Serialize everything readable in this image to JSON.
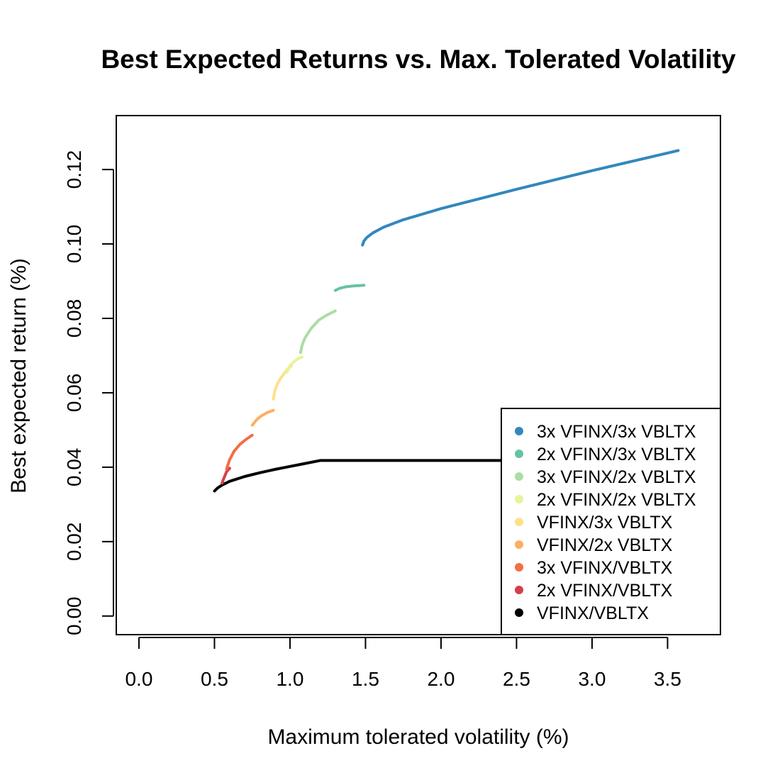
{
  "chart_data": {
    "type": "line",
    "title": "Best Expected Returns vs. Max. Tolerated Volatility",
    "xlabel": "Maximum tolerated volatility (%)",
    "ylabel": "Best expected return (%)",
    "xlim": [
      -0.15,
      3.85
    ],
    "ylim": [
      -0.005,
      0.1345
    ],
    "x_ticks": [
      "0.0",
      "0.5",
      "1.0",
      "1.5",
      "2.0",
      "2.5",
      "3.0",
      "3.5"
    ],
    "y_ticks": [
      "0.00",
      "0.02",
      "0.04",
      "0.06",
      "0.08",
      "0.10",
      "0.12"
    ],
    "grid": false,
    "legend_position": "bottom-right",
    "series": [
      {
        "name": "3x VFINX/3x VBLTX",
        "color": "#3288bd",
        "x": [
          1.48,
          1.49,
          1.51,
          1.55,
          1.62,
          1.75,
          2.0,
          2.5,
          3.0,
          3.57
        ],
        "y": [
          0.0997,
          0.1008,
          0.1018,
          0.103,
          0.1045,
          0.1065,
          0.1095,
          0.1147,
          0.1197,
          0.1251
        ]
      },
      {
        "name": "2x VFINX/3x VBLTX",
        "color": "#66c2a5",
        "x": [
          1.3,
          1.33,
          1.37,
          1.42,
          1.49
        ],
        "y": [
          0.0875,
          0.0881,
          0.0885,
          0.0887,
          0.0889
        ]
      },
      {
        "name": "3x VFINX/2x VBLTX",
        "color": "#abdda4",
        "x": [
          1.07,
          1.08,
          1.1,
          1.14,
          1.19,
          1.24,
          1.3
        ],
        "y": [
          0.0708,
          0.0728,
          0.0748,
          0.0773,
          0.0795,
          0.0808,
          0.082
        ]
      },
      {
        "name": "2x VFINX/2x VBLTX",
        "color": "#e6f598",
        "x": [
          0.98,
          1.0,
          1.03,
          1.06,
          1.08
        ],
        "y": [
          0.0655,
          0.0673,
          0.0685,
          0.0693,
          0.0696
        ]
      },
      {
        "name": "VFINX/3x VBLTX",
        "color": "#fee08b",
        "x": [
          0.89,
          0.9,
          0.92,
          0.95,
          0.98,
          1.01
        ],
        "y": [
          0.0583,
          0.0606,
          0.0627,
          0.0646,
          0.0662,
          0.0673
        ]
      },
      {
        "name": "VFINX/2x VBLTX",
        "color": "#fdae61",
        "x": [
          0.75,
          0.78,
          0.81,
          0.85,
          0.89
        ],
        "y": [
          0.0513,
          0.0528,
          0.0538,
          0.0547,
          0.0553
        ]
      },
      {
        "name": "3x VFINX/VBLTX",
        "color": "#f46d43",
        "x": [
          0.58,
          0.6,
          0.63,
          0.67,
          0.71,
          0.75
        ],
        "y": [
          0.0395,
          0.042,
          0.0443,
          0.0462,
          0.0475,
          0.0486
        ]
      },
      {
        "name": "2x VFINX/VBLTX",
        "color": "#d53e4f",
        "x": [
          0.55,
          0.56,
          0.57,
          0.58,
          0.6
        ],
        "y": [
          0.0357,
          0.0368,
          0.0378,
          0.0388,
          0.0397
        ]
      },
      {
        "name": "VFINX/VBLTX",
        "color": "#000000",
        "x": [
          0.5,
          0.52,
          0.55,
          0.6,
          0.7,
          0.8,
          0.9,
          1.0,
          1.1,
          1.2,
          1.5,
          2.0,
          2.4
        ],
        "y": [
          0.0336,
          0.0344,
          0.0352,
          0.0362,
          0.0375,
          0.0385,
          0.0394,
          0.0402,
          0.041,
          0.0418,
          0.0418,
          0.0418,
          0.0418
        ]
      }
    ]
  }
}
